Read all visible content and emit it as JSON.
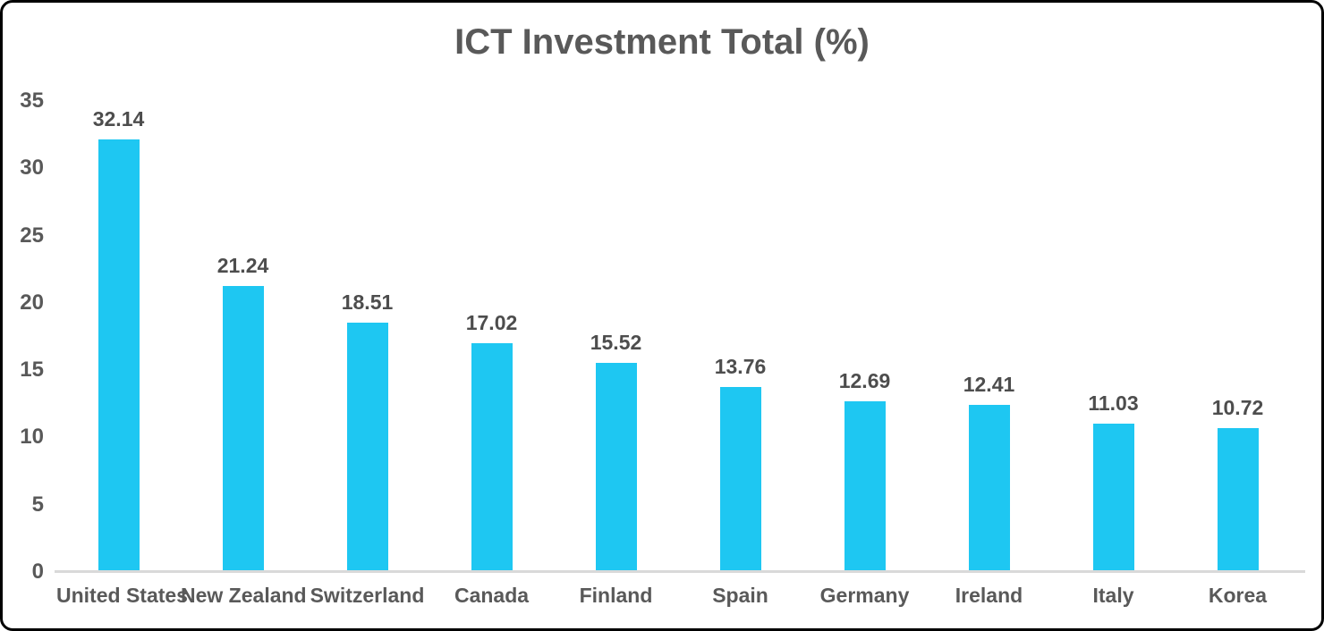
{
  "chart_data": {
    "type": "bar",
    "title": "ICT Investment Total (%)",
    "categories": [
      "United States",
      "New Zealand",
      "Switzerland",
      "Canada",
      "Finland",
      "Spain",
      "Germany",
      "Ireland",
      "Italy",
      "Korea"
    ],
    "values": [
      32.14,
      21.24,
      18.51,
      17.02,
      15.52,
      13.76,
      12.69,
      12.41,
      11.03,
      10.72
    ],
    "value_labels": [
      "32.14",
      "21.24",
      "18.51",
      "17.02",
      "15.52",
      "13.76",
      "12.69",
      "12.41",
      "11.03",
      "10.72"
    ],
    "xlabel": "",
    "ylabel": "",
    "ylim": [
      0,
      35
    ],
    "yticks": [
      0,
      5,
      10,
      15,
      20,
      25,
      30,
      35
    ],
    "grid": false,
    "legend": "none",
    "data_labels": true,
    "bar_color": "#1EC7F2",
    "title_color": "#595959",
    "text_color": "#595959",
    "axis_line_color": "#D9D9D9",
    "background_color": "#FFFFFF",
    "border_color": "#000000"
  }
}
